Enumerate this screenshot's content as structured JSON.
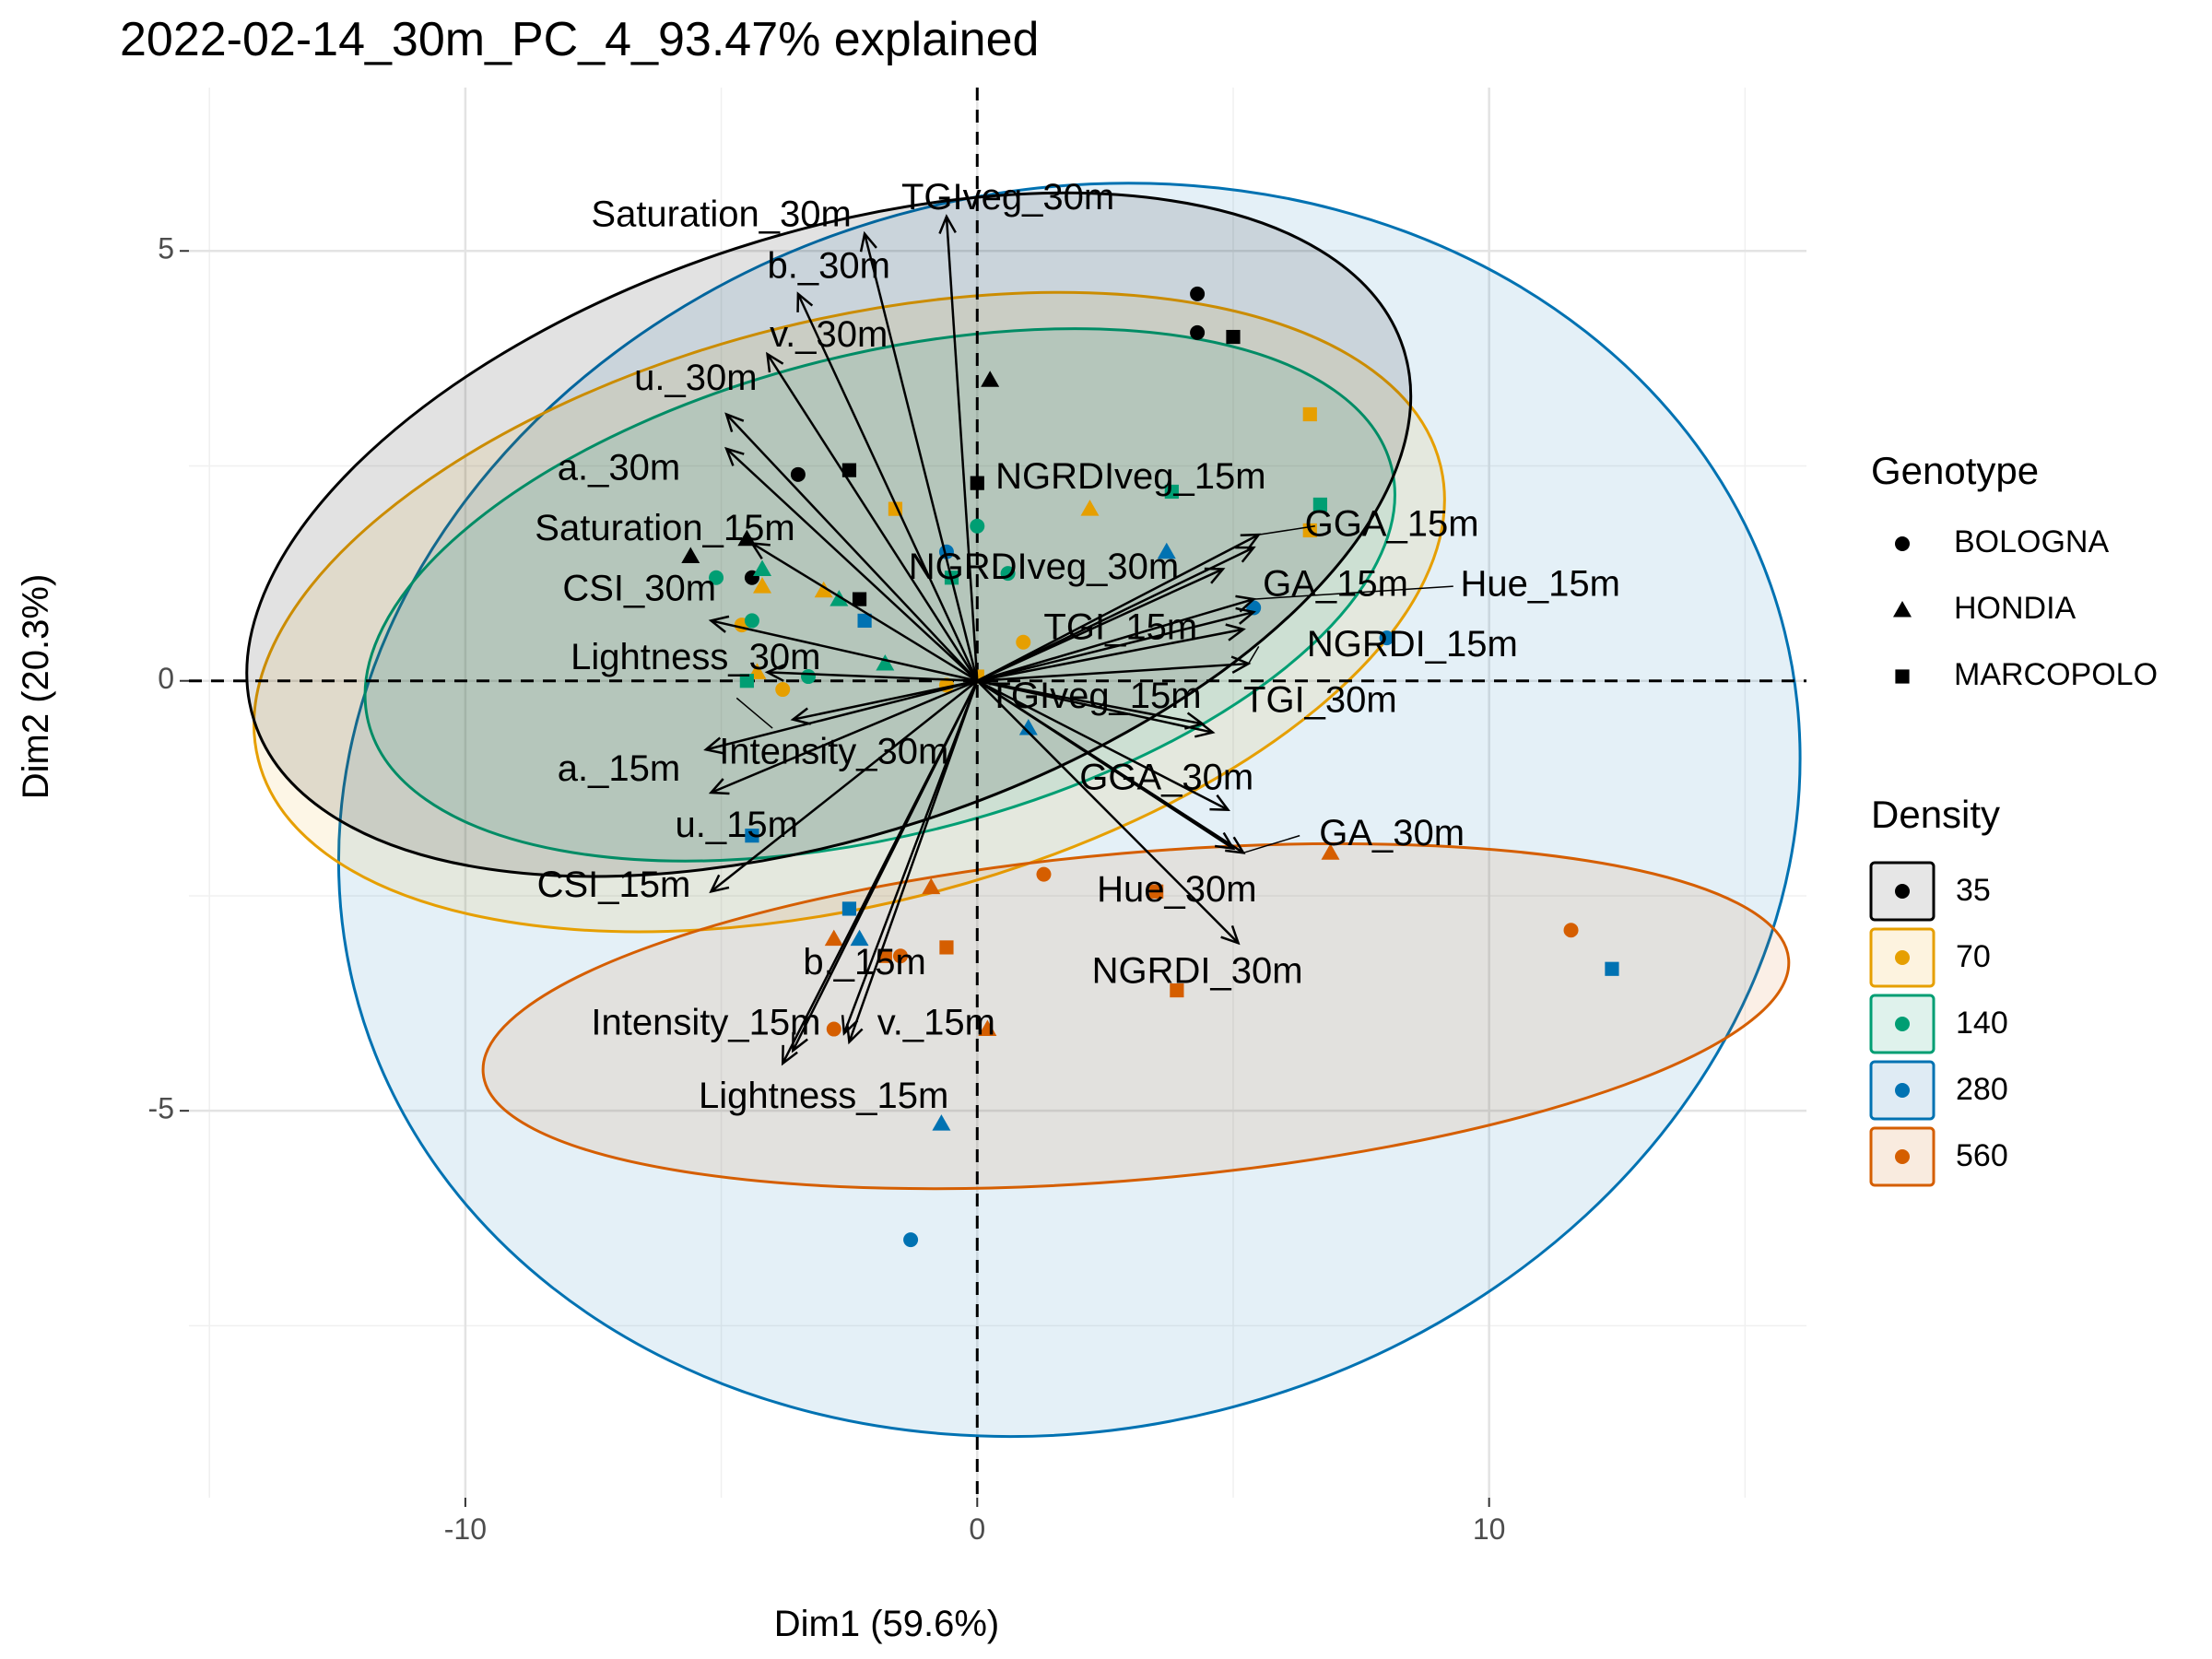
{
  "chart_data": {
    "type": "scatter",
    "subtype": "pca-biplot",
    "title": "2022-02-14_30m_PC_4_93.47% explained",
    "xlabel": "Dim1 (59.6%)",
    "ylabel": "Dim2 (20.3%)",
    "xlim": [
      -15.4,
      16.2
    ],
    "ylim": [
      -9.5,
      6.9
    ],
    "x_ticks": [
      -10,
      0,
      10
    ],
    "y_ticks": [
      -5,
      0,
      5
    ],
    "x_tick_labels": [
      "-10",
      "0",
      "10"
    ],
    "y_tick_labels": [
      "-5",
      "0",
      "5"
    ],
    "grid": true,
    "reference_lines": {
      "x": 0,
      "y": 0,
      "style": "dashed"
    },
    "legend_position": "right",
    "legends": {
      "genotype": {
        "title": "Genotype",
        "entries": [
          {
            "label": "BOLOGNA",
            "shape": "circle"
          },
          {
            "label": "HONDIA",
            "shape": "triangle"
          },
          {
            "label": "MARCOPOLO",
            "shape": "square"
          }
        ]
      },
      "density": {
        "title": "Density",
        "entries": [
          {
            "label": "35",
            "color": "#000000",
            "fill": "#e6e6e6"
          },
          {
            "label": "70",
            "color": "#E69F00",
            "fill": "#fdf3df"
          },
          {
            "label": "140",
            "color": "#009E73",
            "fill": "#dff2ec"
          },
          {
            "label": "280",
            "color": "#0072B2",
            "fill": "#dfebf4"
          },
          {
            "label": "560",
            "color": "#D55E00",
            "fill": "#f9ebdf"
          }
        ]
      }
    },
    "ellipses": [
      {
        "density": "280",
        "cx": 1.8,
        "cy": -1.5,
        "rx": 14.4,
        "ry": 7.2,
        "angle": 14,
        "fill_opacity": 0.38
      },
      {
        "density": "70",
        "cx": -2.5,
        "cy": 0.8,
        "rx": 11.9,
        "ry": 3.4,
        "angle": 14,
        "fill_opacity": 0.35
      },
      {
        "density": "140",
        "cx": -1.9,
        "cy": 1.0,
        "rx": 10.3,
        "ry": 2.8,
        "angle": 14,
        "fill_opacity": 0.35
      },
      {
        "density": "35",
        "cx": -2.9,
        "cy": 1.7,
        "rx": 11.8,
        "ry": 3.5,
        "angle": 18,
        "fill_opacity": 0.4
      },
      {
        "density": "560",
        "cx": 3.1,
        "cy": -3.9,
        "rx": 12.8,
        "ry": 1.9,
        "angle": 5,
        "fill_opacity": 0.35
      }
    ],
    "points": [
      {
        "x": 4.3,
        "y": 4.5,
        "genotype": "BOLOGNA",
        "density": "35"
      },
      {
        "x": 4.3,
        "y": 4.05,
        "genotype": "BOLOGNA",
        "density": "35"
      },
      {
        "x": 5.0,
        "y": 4.0,
        "genotype": "MARCOPOLO",
        "density": "35"
      },
      {
        "x": 0.25,
        "y": 3.5,
        "genotype": "HONDIA",
        "density": "35"
      },
      {
        "x": -3.5,
        "y": 2.4,
        "genotype": "BOLOGNA",
        "density": "35"
      },
      {
        "x": -2.5,
        "y": 2.45,
        "genotype": "MARCOPOLO",
        "density": "35"
      },
      {
        "x": 0.0,
        "y": 2.3,
        "genotype": "MARCOPOLO",
        "density": "35"
      },
      {
        "x": -4.5,
        "y": 1.65,
        "genotype": "HONDIA",
        "density": "35"
      },
      {
        "x": -5.6,
        "y": 1.45,
        "genotype": "HONDIA",
        "density": "35"
      },
      {
        "x": -4.4,
        "y": 1.2,
        "genotype": "BOLOGNA",
        "density": "35"
      },
      {
        "x": -2.3,
        "y": 0.95,
        "genotype": "MARCOPOLO",
        "density": "35"
      },
      {
        "x": 6.5,
        "y": 3.1,
        "genotype": "MARCOPOLO",
        "density": "70"
      },
      {
        "x": -1.6,
        "y": 2.0,
        "genotype": "MARCOPOLO",
        "density": "70"
      },
      {
        "x": 2.2,
        "y": 2.0,
        "genotype": "HONDIA",
        "density": "70"
      },
      {
        "x": 6.5,
        "y": 1.75,
        "genotype": "MARCOPOLO",
        "density": "70"
      },
      {
        "x": -4.2,
        "y": 1.1,
        "genotype": "HONDIA",
        "density": "70"
      },
      {
        "x": -3.0,
        "y": 1.05,
        "genotype": "HONDIA",
        "density": "70"
      },
      {
        "x": -4.6,
        "y": 0.65,
        "genotype": "BOLOGNA",
        "density": "70"
      },
      {
        "x": 0.9,
        "y": 0.45,
        "genotype": "BOLOGNA",
        "density": "70"
      },
      {
        "x": -4.3,
        "y": 0.1,
        "genotype": "HONDIA",
        "density": "70"
      },
      {
        "x": -3.8,
        "y": -0.1,
        "genotype": "BOLOGNA",
        "density": "70"
      },
      {
        "x": -0.6,
        "y": -0.05,
        "genotype": "BOLOGNA",
        "density": "70"
      },
      {
        "x": 0.0,
        "y": 0.05,
        "genotype": "MARCOPOLO",
        "density": "70"
      },
      {
        "x": 3.8,
        "y": 2.2,
        "genotype": "MARCOPOLO",
        "density": "140"
      },
      {
        "x": 6.7,
        "y": 2.05,
        "genotype": "MARCOPOLO",
        "density": "140"
      },
      {
        "x": 0.0,
        "y": 1.8,
        "genotype": "BOLOGNA",
        "density": "140"
      },
      {
        "x": -4.2,
        "y": 1.3,
        "genotype": "HONDIA",
        "density": "140"
      },
      {
        "x": -5.1,
        "y": 1.2,
        "genotype": "BOLOGNA",
        "density": "140"
      },
      {
        "x": -0.5,
        "y": 1.2,
        "genotype": "MARCOPOLO",
        "density": "140"
      },
      {
        "x": 0.6,
        "y": 1.25,
        "genotype": "BOLOGNA",
        "density": "140"
      },
      {
        "x": -2.7,
        "y": 0.95,
        "genotype": "HONDIA",
        "density": "140"
      },
      {
        "x": -4.4,
        "y": 0.7,
        "genotype": "BOLOGNA",
        "density": "140"
      },
      {
        "x": -3.3,
        "y": 0.05,
        "genotype": "BOLOGNA",
        "density": "140"
      },
      {
        "x": -4.5,
        "y": 0.0,
        "genotype": "MARCOPOLO",
        "density": "140"
      },
      {
        "x": -1.8,
        "y": 0.2,
        "genotype": "HONDIA",
        "density": "140"
      },
      {
        "x": -0.6,
        "y": 1.5,
        "genotype": "BOLOGNA",
        "density": "280"
      },
      {
        "x": 3.7,
        "y": 1.5,
        "genotype": "HONDIA",
        "density": "280"
      },
      {
        "x": 5.4,
        "y": 0.85,
        "genotype": "BOLOGNA",
        "density": "280"
      },
      {
        "x": 8.0,
        "y": 0.5,
        "genotype": "BOLOGNA",
        "density": "280"
      },
      {
        "x": -2.2,
        "y": 0.7,
        "genotype": "MARCOPOLO",
        "density": "280"
      },
      {
        "x": 1.0,
        "y": -0.55,
        "genotype": "HONDIA",
        "density": "280"
      },
      {
        "x": -4.4,
        "y": -1.8,
        "genotype": "MARCOPOLO",
        "density": "280"
      },
      {
        "x": -2.5,
        "y": -2.65,
        "genotype": "MARCOPOLO",
        "density": "280"
      },
      {
        "x": -2.3,
        "y": -3.0,
        "genotype": "HONDIA",
        "density": "280"
      },
      {
        "x": 12.4,
        "y": -3.35,
        "genotype": "MARCOPOLO",
        "density": "280"
      },
      {
        "x": -0.7,
        "y": -5.15,
        "genotype": "HONDIA",
        "density": "280"
      },
      {
        "x": -1.3,
        "y": -6.5,
        "genotype": "BOLOGNA",
        "density": "280"
      },
      {
        "x": 6.9,
        "y": -2.0,
        "genotype": "HONDIA",
        "density": "560"
      },
      {
        "x": 1.3,
        "y": -2.25,
        "genotype": "BOLOGNA",
        "density": "560"
      },
      {
        "x": -0.9,
        "y": -2.4,
        "genotype": "HONDIA",
        "density": "560"
      },
      {
        "x": 3.5,
        "y": -2.45,
        "genotype": "MARCOPOLO",
        "density": "560"
      },
      {
        "x": 11.6,
        "y": -2.9,
        "genotype": "BOLOGNA",
        "density": "560"
      },
      {
        "x": -2.8,
        "y": -3.0,
        "genotype": "HONDIA",
        "density": "560"
      },
      {
        "x": -0.6,
        "y": -3.1,
        "genotype": "MARCOPOLO",
        "density": "560"
      },
      {
        "x": -1.8,
        "y": -3.2,
        "genotype": "MARCOPOLO",
        "density": "560"
      },
      {
        "x": -1.5,
        "y": -3.2,
        "genotype": "BOLOGNA",
        "density": "560"
      },
      {
        "x": 3.9,
        "y": -3.6,
        "genotype": "MARCOPOLO",
        "density": "560"
      },
      {
        "x": -2.8,
        "y": -4.05,
        "genotype": "BOLOGNA",
        "density": "560"
      },
      {
        "x": 0.2,
        "y": -4.05,
        "genotype": "HONDIA",
        "density": "560"
      }
    ],
    "variables": [
      {
        "name": "Saturation_30m",
        "x": -2.2,
        "y": 5.2
      },
      {
        "name": "TGIveg_30m",
        "x": -0.6,
        "y": 5.4
      },
      {
        "name": "b._30m",
        "x": -3.5,
        "y": 4.5
      },
      {
        "name": "v._30m",
        "x": -4.1,
        "y": 3.8
      },
      {
        "name": "u._30m",
        "x": -4.9,
        "y": 3.1
      },
      {
        "name": "a._30m",
        "x": -4.9,
        "y": 2.7
      },
      {
        "name": "Saturation_15m",
        "x": -4.4,
        "y": 1.6
      },
      {
        "name": "CSI_30m",
        "x": -5.2,
        "y": 0.7
      },
      {
        "name": "Lightness_30m",
        "x": -4.1,
        "y": 0.1
      },
      {
        "name": "NGRDIveg_15m",
        "x": 5.5,
        "y": 1.7
      },
      {
        "name": "GGA_15m",
        "x": 5.4,
        "y": 1.55
      },
      {
        "name": "NGRDIveg_30m",
        "x": 4.8,
        "y": 1.3
      },
      {
        "name": "GA_15m",
        "x": 5.4,
        "y": 0.95
      },
      {
        "name": "Hue_15m",
        "x": 5.4,
        "y": 0.8
      },
      {
        "name": "TGI_15m",
        "x": 5.2,
        "y": 0.6
      },
      {
        "name": "NGRDI_15m",
        "x": 5.3,
        "y": 0.2
      },
      {
        "name": "TGIveg_15m",
        "x": 4.4,
        "y": -0.5
      },
      {
        "name": "TGI_30m",
        "x": 4.6,
        "y": -0.6
      },
      {
        "name": "GGA_30m",
        "x": 4.9,
        "y": -1.5
      },
      {
        "name": "GA_30m",
        "x": 5.2,
        "y": -2.0
      },
      {
        "name": "Hue_30m",
        "x": 5.0,
        "y": -1.95
      },
      {
        "name": "NGRDI_30m",
        "x": 5.1,
        "y": -3.05
      },
      {
        "name": "a._15m",
        "x": -5.3,
        "y": -0.8
      },
      {
        "name": "Intensity_30m",
        "x": -3.6,
        "y": -0.45
      },
      {
        "name": "u._15m",
        "x": -5.2,
        "y": -1.3
      },
      {
        "name": "CSI_15m",
        "x": -5.2,
        "y": -2.45
      },
      {
        "name": "b._15m",
        "x": -2.6,
        "y": -4.1
      },
      {
        "name": "Intensity_15m",
        "x": -3.8,
        "y": -4.45
      },
      {
        "name": "Lightness_15m",
        "x": -3.6,
        "y": -4.3
      },
      {
        "name": "v._15m",
        "x": -2.5,
        "y": -4.2
      }
    ],
    "variable_labels": [
      {
        "name": "Saturation_30m",
        "x": -5.0,
        "y": 5.4
      },
      {
        "name": "TGIveg_30m",
        "x": 0.6,
        "y": 5.6
      },
      {
        "name": "b._30m",
        "x": -2.9,
        "y": 4.8
      },
      {
        "name": "v._30m",
        "x": -2.9,
        "y": 4.0
      },
      {
        "name": "u._30m",
        "x": -5.5,
        "y": 3.5
      },
      {
        "name": "a._30m",
        "x": -7.0,
        "y": 2.45
      },
      {
        "name": "Saturation_15m",
        "x": -6.1,
        "y": 1.75
      },
      {
        "name": "CSI_30m",
        "x": -6.6,
        "y": 1.05
      },
      {
        "name": "Lightness_30m",
        "x": -5.5,
        "y": 0.25
      },
      {
        "name": "NGRDIveg_15m",
        "x": 3.0,
        "y": 2.35
      },
      {
        "name": "GGA_15m",
        "x": 8.1,
        "y": 1.8
      },
      {
        "name": "NGRDIveg_30m",
        "x": 1.3,
        "y": 1.3
      },
      {
        "name": "GA_15m",
        "x": 7.0,
        "y": 1.1
      },
      {
        "name": "Hue_15m",
        "x": 11.0,
        "y": 1.1
      },
      {
        "name": "TGI_15m",
        "x": 2.8,
        "y": 0.6
      },
      {
        "name": "NGRDI_15m",
        "x": 8.5,
        "y": 0.4
      },
      {
        "name": "TGIveg_15m",
        "x": 2.3,
        "y": -0.2
      },
      {
        "name": "TGI_30m",
        "x": 6.7,
        "y": -0.25
      },
      {
        "name": "GGA_30m",
        "x": 3.7,
        "y": -1.15
      },
      {
        "name": "GA_30m",
        "x": 8.1,
        "y": -1.8
      },
      {
        "name": "Hue_30m",
        "x": 3.9,
        "y": -2.45
      },
      {
        "name": "NGRDI_30m",
        "x": 4.3,
        "y": -3.4
      },
      {
        "name": "a._15m",
        "x": -7.0,
        "y": -1.05
      },
      {
        "name": "Intensity_30m",
        "x": -2.8,
        "y": -0.85
      },
      {
        "name": "u._15m",
        "x": -4.7,
        "y": -1.7
      },
      {
        "name": "CSI_15m",
        "x": -7.1,
        "y": -2.4
      },
      {
        "name": "b._15m",
        "x": -2.2,
        "y": -3.3
      },
      {
        "name": "Intensity_15m",
        "x": -5.3,
        "y": -4.0
      },
      {
        "name": "Lightness_15m",
        "x": -3.0,
        "y": -4.85
      },
      {
        "name": "v._15m",
        "x": -0.8,
        "y": -4.0
      }
    ],
    "label_leader_lines": [
      {
        "from": [
          5.5,
          1.7
        ],
        "to": [
          6.6,
          1.8
        ]
      },
      {
        "from": [
          5.4,
          0.95
        ],
        "to": [
          9.3,
          1.1
        ]
      },
      {
        "from": [
          5.3,
          0.2
        ],
        "to": [
          5.5,
          0.4
        ]
      },
      {
        "from": [
          5.2,
          -2.0
        ],
        "to": [
          6.3,
          -1.8
        ]
      },
      {
        "from": [
          -4.7,
          -0.2
        ],
        "to": [
          -4.0,
          -0.55
        ]
      }
    ]
  }
}
